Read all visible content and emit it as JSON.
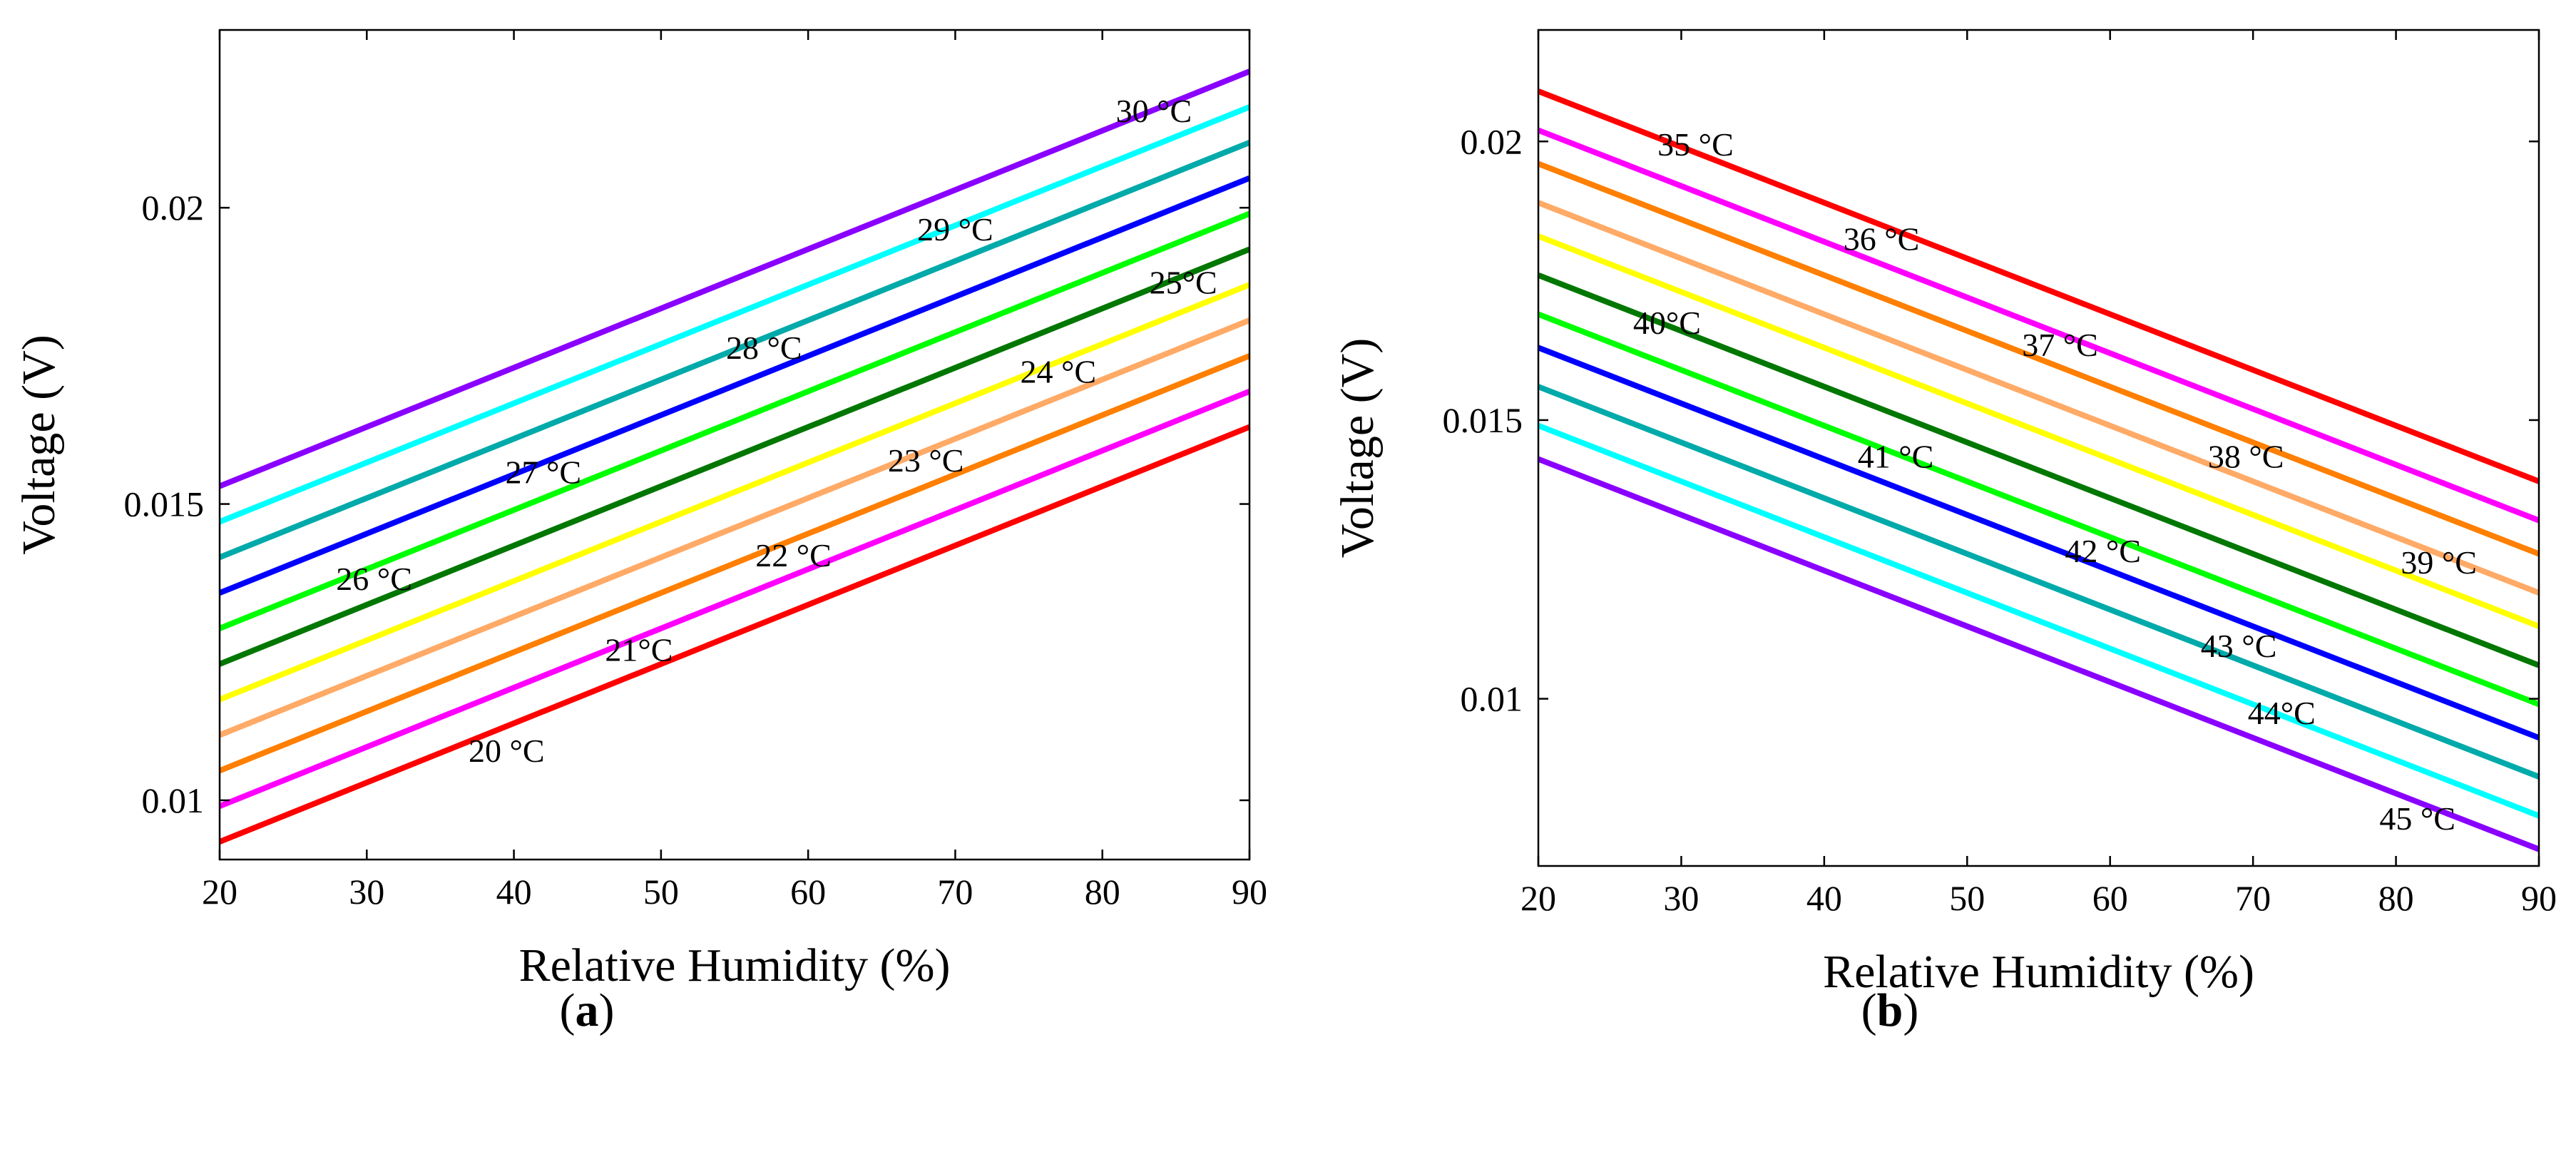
{
  "chart_data": [
    {
      "type": "line",
      "panel": "(a)",
      "xlabel": "Relative Humidity (%)",
      "ylabel": "Voltage (V)",
      "xlim": [
        20,
        90
      ],
      "ylim": [
        0.009,
        0.023
      ],
      "xticks": [
        20,
        30,
        40,
        50,
        60,
        70,
        80,
        90
      ],
      "yticks": [
        0.01,
        0.015,
        0.02
      ],
      "ytick_labels": [
        "0.01",
        "0.015",
        "0.02"
      ],
      "grid": false,
      "series": [
        {
          "label": "20 °C",
          "color": "#ff0000",
          "x": [
            20,
            90
          ],
          "y": [
            0.0093,
            0.0163
          ]
        },
        {
          "label": "21°C",
          "color": "#ff00ff",
          "x": [
            20,
            90
          ],
          "y": [
            0.0099,
            0.0169
          ]
        },
        {
          "label": "22 °C",
          "color": "#ff7f00",
          "x": [
            20,
            90
          ],
          "y": [
            0.0105,
            0.0175
          ]
        },
        {
          "label": "23 °C",
          "color": "#ffaa66",
          "x": [
            20,
            90
          ],
          "y": [
            0.0111,
            0.0181
          ]
        },
        {
          "label": "24 °C",
          "color": "#ffff00",
          "x": [
            20,
            90
          ],
          "y": [
            0.0117,
            0.0187
          ]
        },
        {
          "label": "25°C",
          "color": "#007700",
          "x": [
            20,
            90
          ],
          "y": [
            0.0123,
            0.0193
          ]
        },
        {
          "label": "26 °C",
          "color": "#00ff00",
          "x": [
            20,
            90
          ],
          "y": [
            0.0129,
            0.0199
          ]
        },
        {
          "label": "27 °C",
          "color": "#0000ff",
          "x": [
            20,
            90
          ],
          "y": [
            0.0135,
            0.0205
          ]
        },
        {
          "label": "28 °C",
          "color": "#00aaaa",
          "x": [
            20,
            90
          ],
          "y": [
            0.0141,
            0.0211
          ]
        },
        {
          "label": "29 °C",
          "color": "#00ffff",
          "x": [
            20,
            90
          ],
          "y": [
            0.0147,
            0.0217
          ]
        },
        {
          "label": "30 °C",
          "color": "#8a00ff",
          "x": [
            20,
            90
          ],
          "y": [
            0.0153,
            0.0223
          ]
        }
      ],
      "labels": [
        {
          "text": "20 °C",
          "x": 39.5,
          "y": 0.01065
        },
        {
          "text": "21°C",
          "x": 48.5,
          "y": 0.01235
        },
        {
          "text": "22 °C",
          "x": 59,
          "y": 0.01395
        },
        {
          "text": "23 °C",
          "x": 68,
          "y": 0.01555
        },
        {
          "text": "24 °C",
          "x": 77,
          "y": 0.01705
        },
        {
          "text": "25°C",
          "x": 85.5,
          "y": 0.01855
        },
        {
          "text": "26 °C",
          "x": 30.5,
          "y": 0.01355
        },
        {
          "text": "27 °C",
          "x": 42,
          "y": 0.01535
        },
        {
          "text": "28 °C",
          "x": 57,
          "y": 0.01745
        },
        {
          "text": "29 °C",
          "x": 70,
          "y": 0.01945
        },
        {
          "text": "30 °C",
          "x": 83.5,
          "y": 0.02145
        }
      ]
    },
    {
      "type": "line",
      "panel": "(b)",
      "xlabel": "Relative Humidity (%)",
      "ylabel": "Voltage (V)",
      "xlim": [
        20,
        90
      ],
      "ylim": [
        0.007,
        0.022
      ],
      "xticks": [
        20,
        30,
        40,
        50,
        60,
        70,
        80,
        90
      ],
      "yticks": [
        0.01,
        0.015,
        0.02
      ],
      "ytick_labels": [
        "0.01",
        "0.015",
        "0.02"
      ],
      "grid": false,
      "series": [
        {
          "label": "35 °C",
          "color": "#ff0000",
          "x": [
            20,
            90
          ],
          "y": [
            0.0209,
            0.0139
          ]
        },
        {
          "label": "36 °C",
          "color": "#ff00ff",
          "x": [
            20,
            90
          ],
          "y": [
            0.0202,
            0.0132
          ]
        },
        {
          "label": "37 °C",
          "color": "#ff7f00",
          "x": [
            20,
            90
          ],
          "y": [
            0.0196,
            0.0126
          ]
        },
        {
          "label": "38 °C",
          "color": "#ffaa66",
          "x": [
            20,
            90
          ],
          "y": [
            0.0189,
            0.0119
          ]
        },
        {
          "label": "39 °C",
          "color": "#ffff00",
          "x": [
            20,
            90
          ],
          "y": [
            0.0183,
            0.0113
          ]
        },
        {
          "label": "40°C",
          "color": "#007700",
          "x": [
            20,
            90
          ],
          "y": [
            0.0176,
            0.0106
          ]
        },
        {
          "label": "41 °C",
          "color": "#00ff00",
          "x": [
            20,
            90
          ],
          "y": [
            0.0169,
            0.0099
          ]
        },
        {
          "label": "42 °C",
          "color": "#0000ff",
          "x": [
            20,
            90
          ],
          "y": [
            0.0163,
            0.0093
          ]
        },
        {
          "label": "43 °C",
          "color": "#00aaaa",
          "x": [
            20,
            90
          ],
          "y": [
            0.0156,
            0.0086
          ]
        },
        {
          "label": "44°C",
          "color": "#00ffff",
          "x": [
            20,
            90
          ],
          "y": [
            0.0149,
            0.0079
          ]
        },
        {
          "label": "45 °C",
          "color": "#8a00ff",
          "x": [
            20,
            90
          ],
          "y": [
            0.0143,
            0.0073
          ]
        }
      ],
      "labels": [
        {
          "text": "35 °C",
          "x": 31,
          "y": 0.01975
        },
        {
          "text": "36 °C",
          "x": 44,
          "y": 0.01805
        },
        {
          "text": "37 °C",
          "x": 56.5,
          "y": 0.01615
        },
        {
          "text": "38 °C",
          "x": 69.5,
          "y": 0.01415
        },
        {
          "text": "39 °C",
          "x": 83,
          "y": 0.01225
        },
        {
          "text": "40°C",
          "x": 29,
          "y": 0.01655
        },
        {
          "text": "41 °C",
          "x": 45,
          "y": 0.01415
        },
        {
          "text": "42 °C",
          "x": 59.5,
          "y": 0.01245
        },
        {
          "text": "43 °C",
          "x": 69,
          "y": 0.01075
        },
        {
          "text": "44°C",
          "x": 72,
          "y": 0.00955
        },
        {
          "text": "45 °C",
          "x": 81.5,
          "y": 0.00765
        }
      ]
    }
  ],
  "panel_labels": {
    "a": {
      "paren_open": "(",
      "letter": "a",
      "paren_close": ")"
    },
    "b": {
      "paren_open": "(",
      "letter": "b",
      "paren_close": ")"
    }
  }
}
